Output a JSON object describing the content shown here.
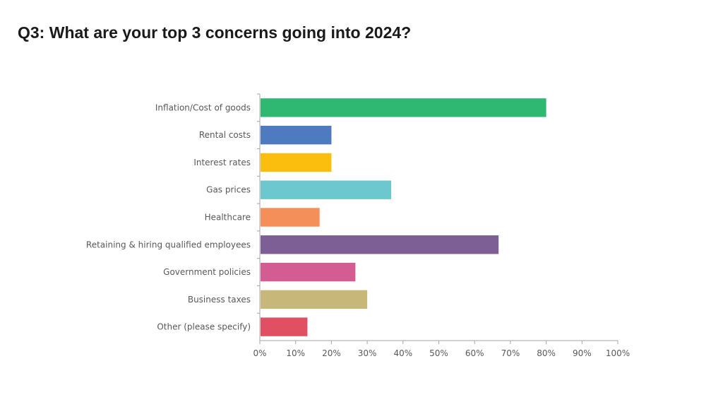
{
  "title": "Q3: What are your top 3 concerns going into 2024?",
  "chart_data": {
    "type": "bar",
    "orientation": "horizontal",
    "categories": [
      "Inflation/Cost of goods",
      "Rental costs",
      "Interest rates",
      "Gas prices",
      "Healthcare",
      "Retaining & hiring qualified employees",
      "Government policies",
      "Business taxes",
      "Other (please specify)"
    ],
    "values": [
      80,
      20,
      20,
      36.7,
      16.7,
      66.7,
      26.7,
      30,
      13.3
    ],
    "colors": [
      "#2EB872",
      "#4E7AC0",
      "#FBBE0F",
      "#6CC7CF",
      "#F58F59",
      "#7D5F96",
      "#D35D93",
      "#C7B778",
      "#E05062"
    ],
    "xlim": [
      0,
      100
    ],
    "xticks": [
      "0%",
      "10%",
      "20%",
      "30%",
      "40%",
      "50%",
      "60%",
      "70%",
      "80%",
      "90%",
      "100%"
    ],
    "grid": false,
    "legend": false
  }
}
